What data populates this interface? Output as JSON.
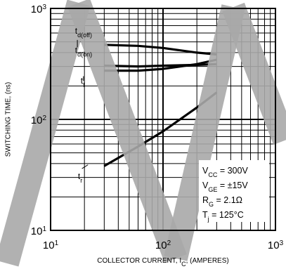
{
  "chart_data": {
    "type": "line",
    "x_scale": "log",
    "y_scale": "log",
    "xlim": [
      10,
      1000
    ],
    "ylim": [
      10,
      1000
    ],
    "grid": true,
    "x_ticks": [
      {
        "base": "10",
        "exp": "1"
      },
      {
        "base": "10",
        "exp": "2"
      },
      {
        "base": "10",
        "exp": "3"
      }
    ],
    "y_ticks": [
      {
        "base": "10",
        "exp": "1"
      },
      {
        "base": "10",
        "exp": "2"
      },
      {
        "base": "10",
        "exp": "3"
      }
    ],
    "xlabel": {
      "prefix": "COLLECTOR CURRENT, I",
      "sub": "C",
      "suffix": ", (AMPERES)"
    },
    "ylabel": "SWITCHING TIME, (ns)",
    "series": [
      {
        "name": "t_d(off)",
        "label_base": "t",
        "label_sub": "d(off)",
        "x": [
          30,
          60,
          100,
          200,
          300
        ],
        "y": [
          470,
          460,
          440,
          400,
          385
        ]
      },
      {
        "name": "t_d(on)",
        "label_base": "t",
        "label_sub": "d(on)",
        "x": [
          30,
          60,
          100,
          200,
          300
        ],
        "y": [
          305,
          300,
          305,
          310,
          315
        ]
      },
      {
        "name": "t_f",
        "label_base": "t",
        "label_sub": "f",
        "x": [
          30,
          60,
          100,
          200,
          300
        ],
        "y": [
          275,
          275,
          285,
          315,
          345
        ]
      },
      {
        "name": "t_r",
        "label_base": "t",
        "label_sub": "r",
        "x": [
          30,
          60,
          100,
          200,
          300
        ],
        "y": [
          38,
          57,
          78,
          128,
          175
        ]
      }
    ],
    "conditions": [
      {
        "base": "V",
        "sub": "CC",
        "rest": " = 300V"
      },
      {
        "base": "V",
        "sub": "GE",
        "rest": " = ±15V"
      },
      {
        "base": "R",
        "sub": "G",
        "rest": " = 2.1Ω"
      },
      {
        "base": "T",
        "sub": "j",
        "rest": " = 125°C"
      }
    ]
  }
}
